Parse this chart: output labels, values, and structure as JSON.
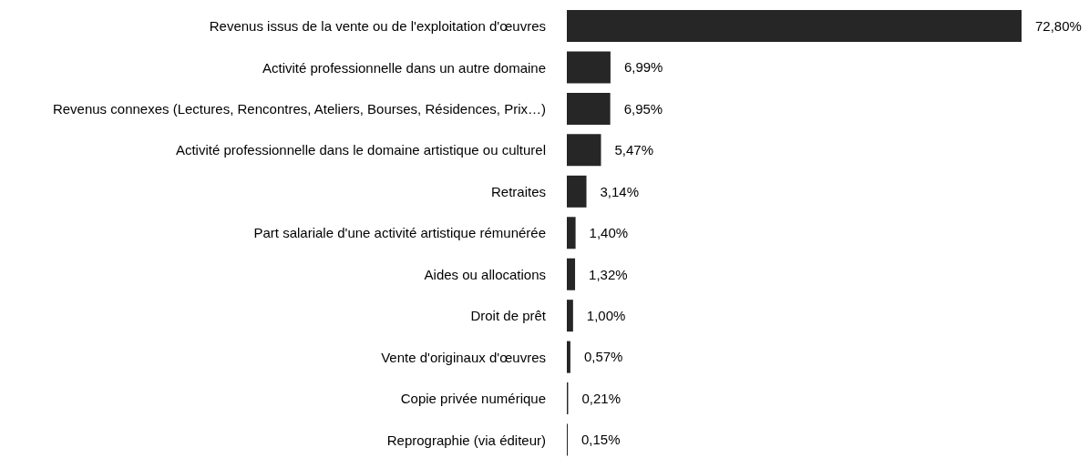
{
  "chart_data": {
    "type": "bar",
    "orientation": "horizontal",
    "categories": [
      "Revenus issus de la vente ou de l'exploitation d'œuvres",
      "Activité professionnelle dans un autre domaine",
      "Revenus connexes (Lectures, Rencontres, Ateliers, Bourses, Résidences, Prix…)",
      "Activité professionnelle dans le domaine artistique ou culturel",
      "Retraites",
      "Part salariale d'une activité artistique rémunérée",
      "Aides ou allocations",
      "Droit de prêt",
      "Vente d'originaux d'œuvres",
      "Copie privée numérique",
      "Reprographie (via éditeur)"
    ],
    "values": [
      72.8,
      6.99,
      6.95,
      5.47,
      3.14,
      1.4,
      1.32,
      1.0,
      0.57,
      0.21,
      0.15
    ],
    "value_labels": [
      "72,80%",
      "6,99%",
      "6,95%",
      "5,47%",
      "3,14%",
      "1,40%",
      "1,32%",
      "1,00%",
      "0,57%",
      "0,21%",
      "0,15%"
    ],
    "color": "#262626",
    "tick_labels": "y"
  }
}
